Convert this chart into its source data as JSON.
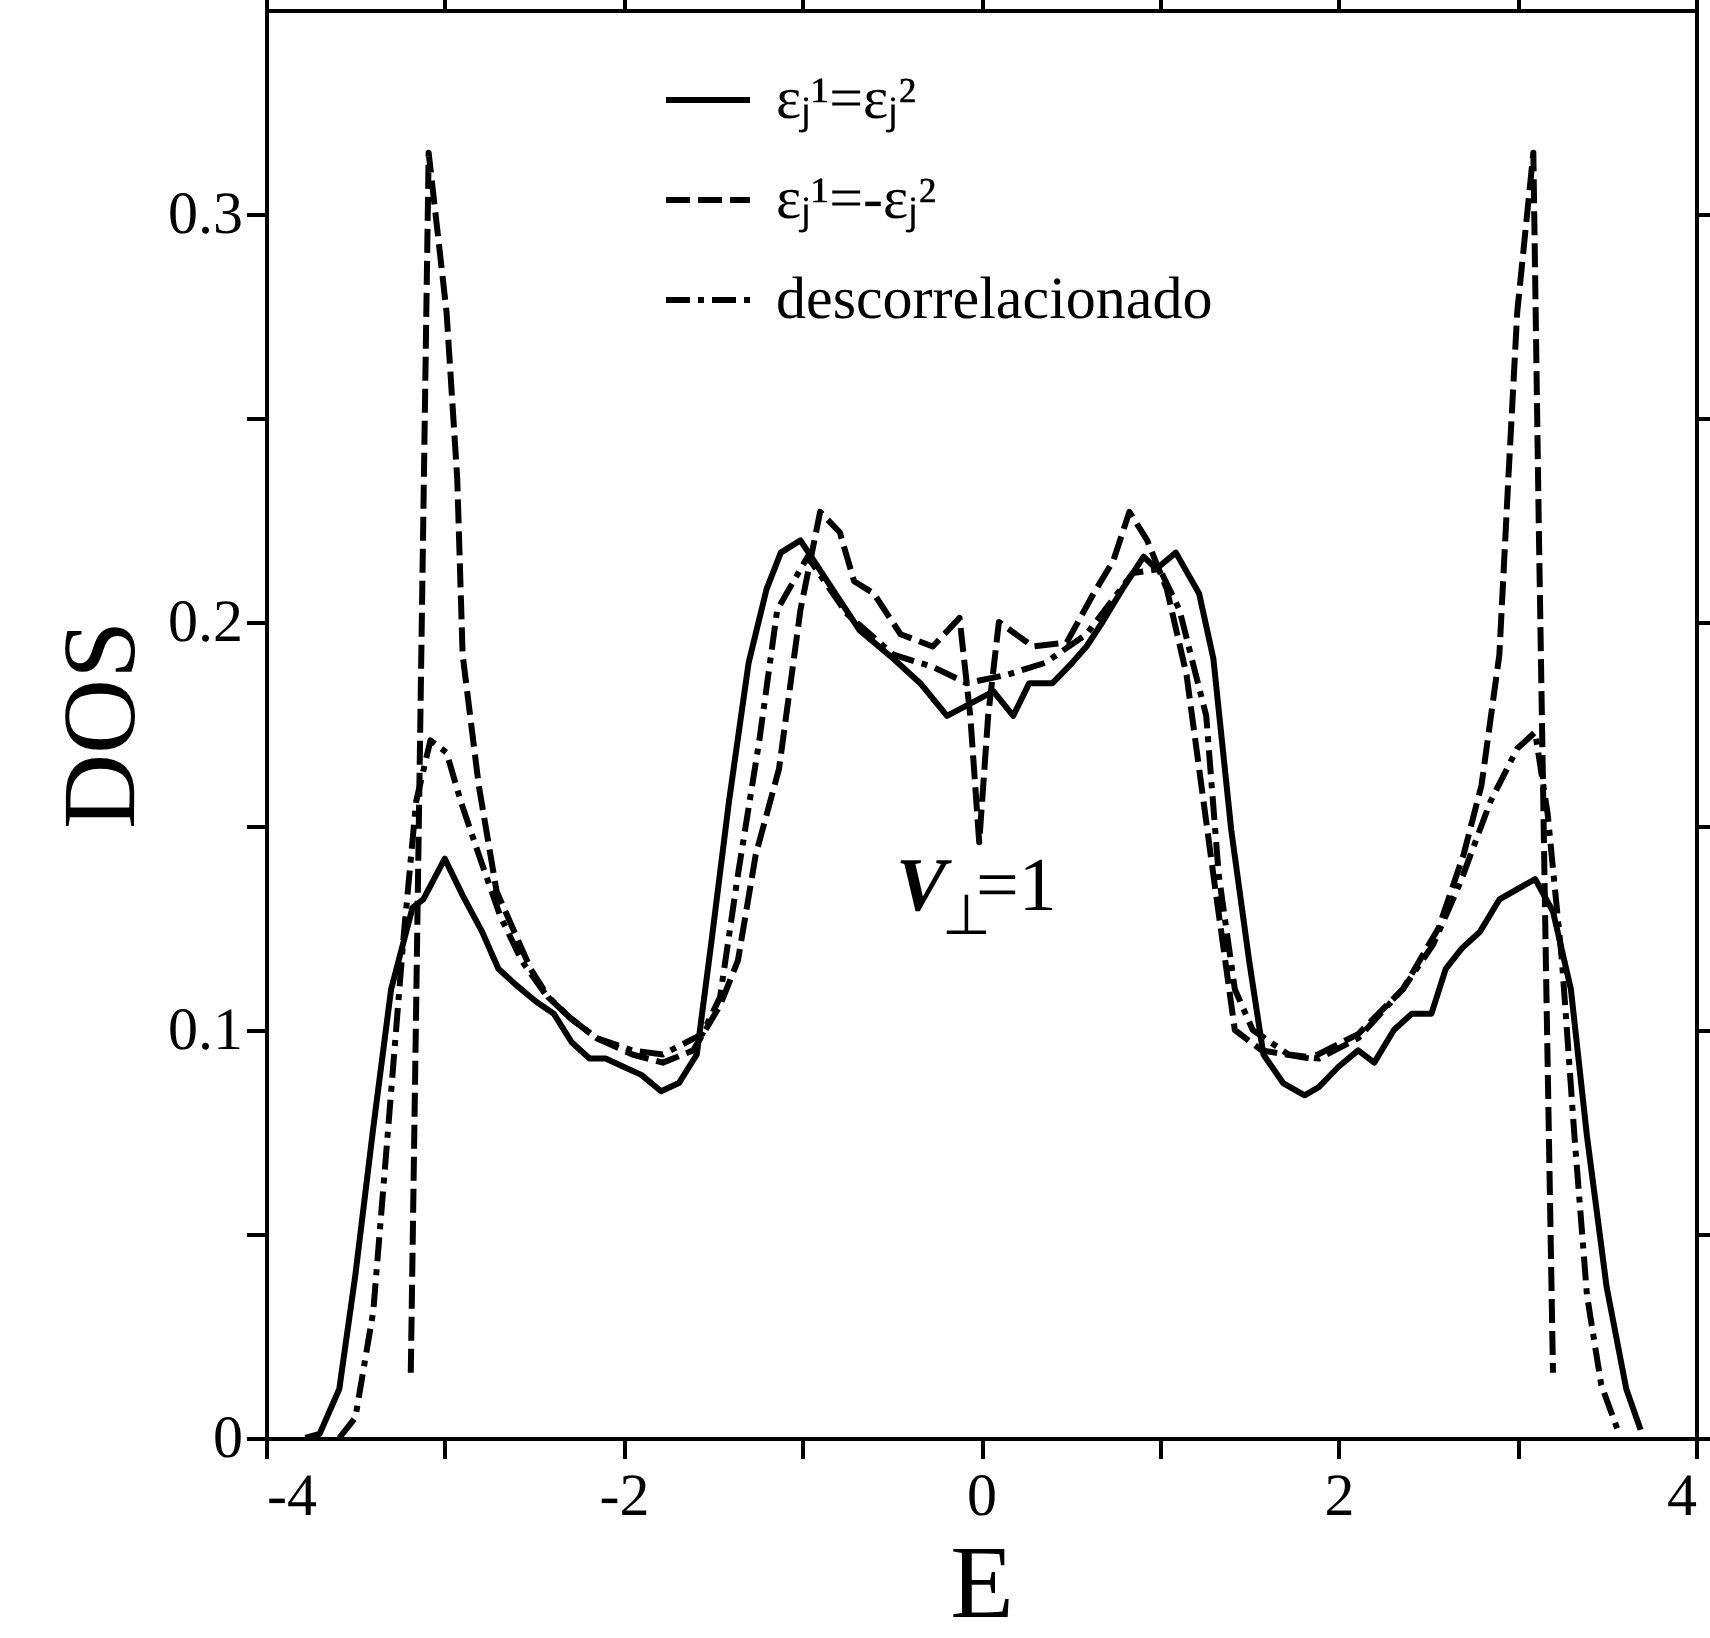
{
  "chart_data": {
    "type": "line",
    "xlabel": "E",
    "ylabel": "DOS",
    "xlim": [
      -4,
      4
    ],
    "ylim": [
      0,
      0.35
    ],
    "xticks": [
      -4,
      {
        "value": -3,
        "label": null
      },
      -2,
      {
        "value": -1,
        "label": null
      },
      0,
      {
        "value": 1,
        "label": null
      },
      2,
      {
        "value": 3,
        "label": null
      },
      4
    ],
    "yticks": [
      0,
      {
        "value": 0.05,
        "label": null
      },
      0.1,
      {
        "value": 0.15,
        "label": null
      },
      0.2,
      {
        "value": 0.25,
        "label": null
      },
      0.3
    ],
    "legend": "top",
    "annotations": [
      "V$_{⊥}$=1"
    ],
    "series": [
      {
        "name": "εⱼ¹=εⱼ²",
        "color": "#000000",
        "line_style": "solid",
        "x": [
          -3.78,
          -3.7,
          -3.59,
          -3.5,
          -3.4,
          -3.3,
          -3.18,
          -3.12,
          -3.0,
          -2.9,
          -2.79,
          -2.7,
          -2.6,
          -2.49,
          -2.39,
          -2.29,
          -2.19,
          -2.1,
          -2.0,
          -1.9,
          -1.79,
          -1.69,
          -1.59,
          -1.51,
          -1.41,
          -1.3,
          -1.2,
          -1.12,
          -1.01,
          -0.68,
          -0.49,
          -0.34,
          -0.19,
          -0.06,
          0.07,
          0.18,
          0.27,
          0.4,
          0.51,
          0.59,
          0.68,
          0.79,
          0.91,
          0.98,
          1.09,
          1.22,
          1.3,
          1.4,
          1.5,
          1.58,
          1.69,
          1.81,
          1.89,
          2.0,
          2.11,
          2.2,
          2.31,
          2.41,
          2.52,
          2.6,
          2.69,
          2.79,
          2.9,
          3.1,
          3.2,
          3.3,
          3.39,
          3.5,
          3.61,
          3.69
        ],
        "values": [
          0,
          0.001,
          0.012,
          0.04,
          0.076,
          0.11,
          0.13,
          0.132,
          0.142,
          0.133,
          0.124,
          0.115,
          0.111,
          0.107,
          0.104,
          0.097,
          0.093,
          0.093,
          0.091,
          0.089,
          0.085,
          0.087,
          0.094,
          0.121,
          0.156,
          0.19,
          0.208,
          0.217,
          0.22,
          0.198,
          0.191,
          0.185,
          0.177,
          0.18,
          0.183,
          0.177,
          0.185,
          0.185,
          0.19,
          0.194,
          0.2,
          0.208,
          0.216,
          0.213,
          0.217,
          0.207,
          0.191,
          0.149,
          0.117,
          0.094,
          0.087,
          0.084,
          0.086,
          0.091,
          0.095,
          0.092,
          0.1,
          0.104,
          0.104,
          0.115,
          0.12,
          0.124,
          0.132,
          0.137,
          0.129,
          0.11,
          0.074,
          0.037,
          0.012,
          0.002
        ]
      },
      {
        "name": "εⱼ¹=-εⱼ²",
        "color": "#000000",
        "line_style": "dashed",
        "x": [
          -3.19,
          -3.09,
          -2.99,
          -2.93,
          -2.9,
          -2.81,
          -2.71,
          -2.62,
          -2.52,
          -2.42,
          -2.3,
          -2.15,
          -1.95,
          -1.78,
          -1.61,
          -1.46,
          -1.36,
          -1.26,
          -1.13,
          -1.01,
          -0.9,
          -0.79,
          -0.71,
          -0.6,
          -0.45,
          -0.27,
          -0.12,
          -0.06,
          -0.01,
          0.04,
          0.1,
          0.29,
          0.48,
          0.63,
          0.74,
          0.83,
          0.93,
          1.04,
          1.15,
          1.3,
          1.42,
          1.57,
          1.84,
          2.11,
          2.36,
          2.56,
          2.7,
          2.8,
          2.9,
          2.95,
          3.0,
          3.09,
          3.12,
          3.16,
          3.2
        ],
        "values": [
          0.016,
          0.315,
          0.276,
          0.235,
          0.192,
          0.16,
          0.134,
          0.125,
          0.115,
          0.108,
          0.103,
          0.098,
          0.094,
          0.092,
          0.095,
          0.106,
          0.117,
          0.143,
          0.164,
          0.203,
          0.227,
          0.222,
          0.21,
          0.207,
          0.197,
          0.194,
          0.201,
          0.177,
          0.146,
          0.177,
          0.2,
          0.194,
          0.195,
          0.207,
          0.215,
          0.227,
          0.22,
          0.208,
          0.187,
          0.138,
          0.1,
          0.095,
          0.093,
          0.099,
          0.11,
          0.125,
          0.143,
          0.16,
          0.192,
          0.235,
          0.276,
          0.315,
          0.225,
          0.117,
          0.016
        ]
      },
      {
        "name": "descorrelacionado",
        "color": "#000000",
        "line_style": "dashdot",
        "x": [
          -3.59,
          -3.5,
          -3.4,
          -3.32,
          -3.23,
          -3.16,
          -3.08,
          -2.99,
          -2.91,
          -2.81,
          -2.69,
          -2.57,
          -2.44,
          -2.3,
          -2.15,
          -1.95,
          -1.78,
          -1.56,
          -1.46,
          -1.36,
          -1.24,
          -1.14,
          -0.97,
          -0.75,
          -0.49,
          -0.27,
          -0.08,
          0.14,
          0.36,
          0.59,
          0.85,
          1.0,
          1.11,
          1.26,
          1.33,
          1.42,
          1.52,
          1.72,
          1.89,
          2.11,
          2.36,
          2.53,
          2.68,
          2.85,
          3.0,
          3.1,
          3.17,
          3.25,
          3.32,
          3.39,
          3.47,
          3.57
        ],
        "values": [
          0,
          0.005,
          0.031,
          0.074,
          0.123,
          0.156,
          0.171,
          0.168,
          0.156,
          0.143,
          0.128,
          0.117,
          0.109,
          0.103,
          0.098,
          0.095,
          0.094,
          0.099,
          0.108,
          0.138,
          0.171,
          0.203,
          0.216,
          0.202,
          0.192,
          0.189,
          0.185,
          0.187,
          0.19,
          0.197,
          0.212,
          0.213,
          0.203,
          0.177,
          0.138,
          0.11,
          0.1,
          0.094,
          0.093,
          0.098,
          0.11,
          0.121,
          0.136,
          0.156,
          0.169,
          0.173,
          0.153,
          0.117,
          0.074,
          0.035,
          0.013,
          0.001
        ]
      }
    ]
  }
}
